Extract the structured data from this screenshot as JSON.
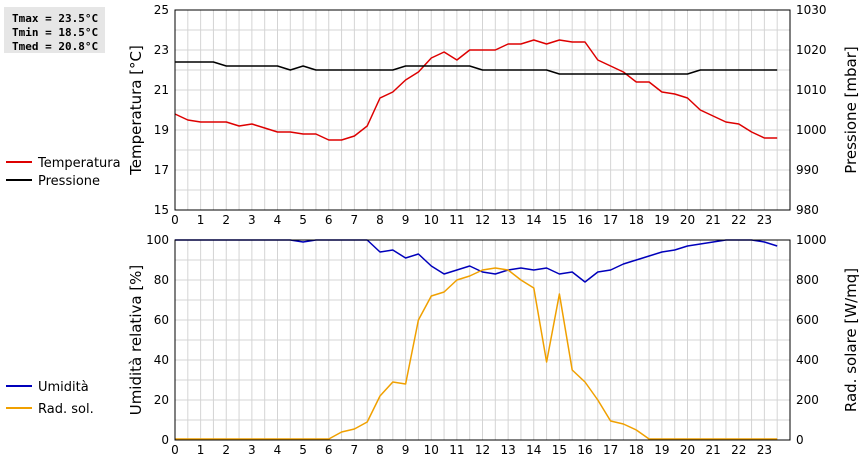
{
  "stats": {
    "tmax": "Tmax = 23.5°C",
    "tmin": "Tmin = 18.5°C",
    "tmed": "Tmed = 20.8°C"
  },
  "chart_data": [
    {
      "type": "line",
      "ylabel_left": "Temperatura [°C]",
      "ylabel_right": "Pressione [mbar]",
      "xlim": [
        0,
        24
      ],
      "ylim_left": [
        15,
        25
      ],
      "ylim_right": [
        980,
        1030
      ],
      "yticks_left": [
        15,
        17,
        19,
        21,
        23,
        25
      ],
      "yticks_right": [
        980,
        990,
        1000,
        1010,
        1020,
        1030
      ],
      "xticks": [
        0,
        1,
        2,
        3,
        4,
        5,
        6,
        7,
        8,
        9,
        10,
        11,
        12,
        13,
        14,
        15,
        16,
        17,
        18,
        19,
        20,
        21,
        22,
        23
      ],
      "grid": true,
      "legend_position": "left",
      "series": [
        {
          "name": "Temperatura",
          "axis": "left",
          "color": "#dd0000",
          "x": [
            0,
            0.5,
            1,
            1.5,
            2,
            2.5,
            3,
            3.5,
            4,
            4.5,
            5,
            5.5,
            6,
            6.5,
            7,
            7.5,
            8,
            8.5,
            9,
            9.5,
            10,
            10.5,
            11,
            11.5,
            12,
            12.5,
            13,
            13.5,
            14,
            14.5,
            15,
            15.5,
            16,
            16.5,
            17,
            17.5,
            18,
            18.5,
            19,
            19.5,
            20,
            20.5,
            21,
            21.5,
            22,
            22.5,
            23,
            23.5
          ],
          "y": [
            19.8,
            19.5,
            19.4,
            19.4,
            19.4,
            19.2,
            19.3,
            19.1,
            18.9,
            18.9,
            18.8,
            18.8,
            18.5,
            18.5,
            18.7,
            19.2,
            20.6,
            20.9,
            21.5,
            21.9,
            22.6,
            22.9,
            22.5,
            23.0,
            23.0,
            23.0,
            23.3,
            23.3,
            23.5,
            23.3,
            23.5,
            23.4,
            23.4,
            22.5,
            22.2,
            21.9,
            21.4,
            21.4,
            20.9,
            20.8,
            20.6,
            20.0,
            19.7,
            19.4,
            19.3,
            18.9,
            18.6,
            18.6
          ]
        },
        {
          "name": "Pressione",
          "axis": "right",
          "color": "#000000",
          "x": [
            0,
            0.5,
            1,
            1.5,
            2,
            2.5,
            3,
            3.5,
            4,
            4.5,
            5,
            5.5,
            6,
            6.5,
            7,
            7.5,
            8,
            8.5,
            9,
            9.5,
            10,
            10.5,
            11,
            11.5,
            12,
            12.5,
            13,
            13.5,
            14,
            14.5,
            15,
            15.5,
            16,
            16.5,
            17,
            17.5,
            18,
            18.5,
            19,
            19.5,
            20,
            20.5,
            21,
            21.5,
            22,
            22.5,
            23,
            23.5
          ],
          "y": [
            1017,
            1017,
            1017,
            1017,
            1016,
            1016,
            1016,
            1016,
            1016,
            1015,
            1016,
            1015,
            1015,
            1015,
            1015,
            1015,
            1015,
            1015,
            1016,
            1016,
            1016,
            1016,
            1016,
            1016,
            1015,
            1015,
            1015,
            1015,
            1015,
            1015,
            1014,
            1014,
            1014,
            1014,
            1014,
            1014,
            1014,
            1014,
            1014,
            1014,
            1014,
            1015,
            1015,
            1015,
            1015,
            1015,
            1015,
            1015
          ]
        }
      ]
    },
    {
      "type": "line",
      "ylabel_left": "Umidità relativa [%]",
      "ylabel_right": "Rad. solare [W/mq]",
      "xlim": [
        0,
        24
      ],
      "ylim_left": [
        0,
        100
      ],
      "ylim_right": [
        0,
        1000
      ],
      "yticks_left": [
        0,
        20,
        40,
        60,
        80,
        100
      ],
      "yticks_right": [
        0,
        200,
        400,
        600,
        800,
        1000
      ],
      "xticks": [
        0,
        1,
        2,
        3,
        4,
        5,
        6,
        7,
        8,
        9,
        10,
        11,
        12,
        13,
        14,
        15,
        16,
        17,
        18,
        19,
        20,
        21,
        22,
        23
      ],
      "grid": true,
      "legend_position": "left",
      "series": [
        {
          "name": "Umidità",
          "axis": "left",
          "color": "#0000bb",
          "x": [
            0,
            0.5,
            1,
            1.5,
            2,
            2.5,
            3,
            3.5,
            4,
            4.5,
            5,
            5.5,
            6,
            6.5,
            7,
            7.5,
            8,
            8.5,
            9,
            9.5,
            10,
            10.5,
            11,
            11.5,
            12,
            12.5,
            13,
            13.5,
            14,
            14.5,
            15,
            15.5,
            16,
            16.5,
            17,
            17.5,
            18,
            18.5,
            19,
            19.5,
            20,
            20.5,
            21,
            21.5,
            22,
            22.5,
            23,
            23.5
          ],
          "y": [
            100,
            100,
            100,
            100,
            100,
            100,
            100,
            100,
            100,
            100,
            99,
            100,
            100,
            100,
            100,
            100,
            94,
            95,
            91,
            93,
            87,
            83,
            85,
            87,
            84,
            83,
            85,
            86,
            85,
            86,
            83,
            84,
            79,
            84,
            85,
            88,
            90,
            92,
            94,
            95,
            97,
            98,
            99,
            100,
            100,
            100,
            99,
            97
          ]
        },
        {
          "name": "Rad. sol.",
          "axis": "right",
          "color": "#f0a000",
          "x": [
            0,
            0.5,
            1,
            1.5,
            2,
            2.5,
            3,
            3.5,
            4,
            4.5,
            5,
            5.5,
            6,
            6.5,
            7,
            7.5,
            8,
            8.5,
            9,
            9.5,
            10,
            10.5,
            11,
            11.5,
            12,
            12.5,
            13,
            13.5,
            14,
            14.5,
            15,
            15.5,
            16,
            16.5,
            17,
            17.5,
            18,
            18.5,
            19,
            19.5,
            20,
            20.5,
            21,
            21.5,
            22,
            22.5,
            23,
            23.5
          ],
          "y": [
            5,
            5,
            5,
            5,
            5,
            5,
            5,
            5,
            5,
            5,
            5,
            5,
            5,
            40,
            55,
            90,
            220,
            290,
            280,
            600,
            720,
            740,
            800,
            820,
            850,
            860,
            850,
            800,
            760,
            390,
            730,
            350,
            290,
            200,
            95,
            80,
            50,
            5,
            5,
            5,
            5,
            5,
            5,
            5,
            5,
            5,
            5,
            5
          ]
        }
      ]
    }
  ]
}
